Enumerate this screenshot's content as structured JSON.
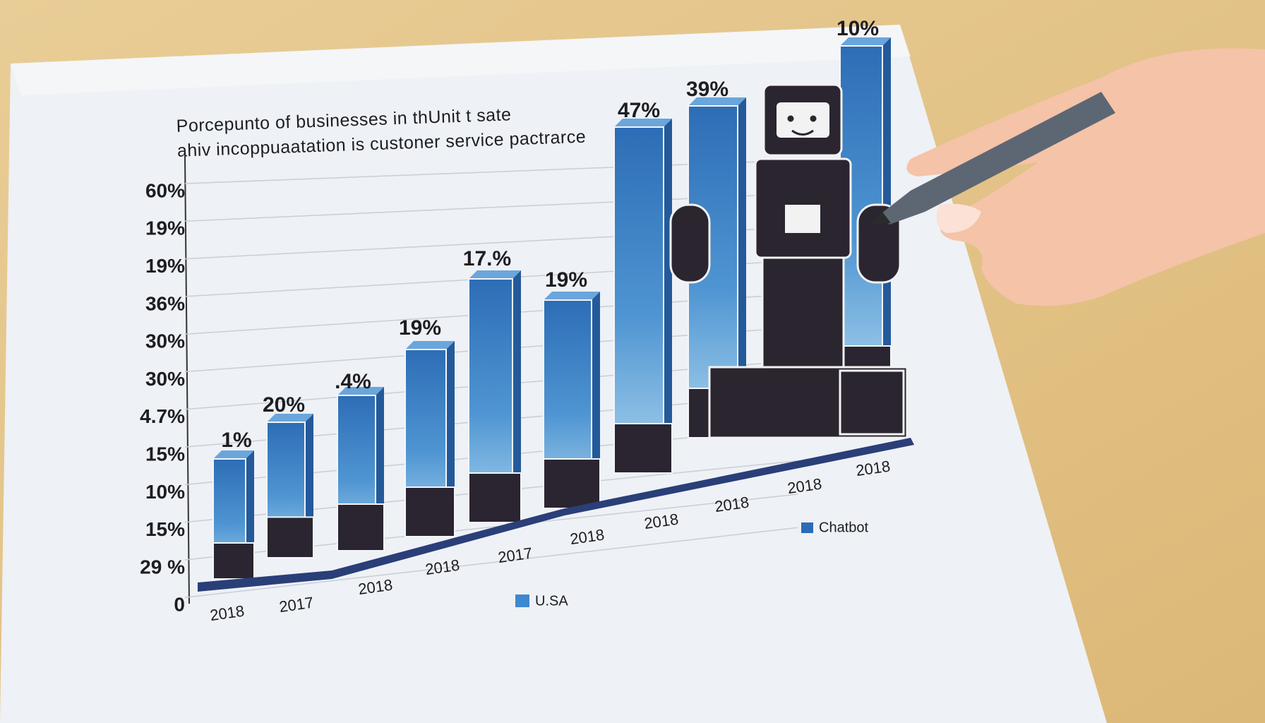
{
  "title": {
    "lines": [
      "Porcepunto of businesses in thUnit t sate",
      "ahiv incoppuaatation is custoner service pactrarce"
    ]
  },
  "y_axis_labels": [
    "60%",
    "19%",
    "19%",
    "36%",
    "30%",
    "30%",
    "4.7%",
    "15%",
    "10%",
    "15%",
    "29 %",
    "0"
  ],
  "bars": [
    {
      "label": "1%"
    },
    {
      "label": "20%"
    },
    {
      "label": ".4%"
    },
    {
      "label": "19%"
    },
    {
      "label": "17.%"
    },
    {
      "label": "19%"
    },
    {
      "label": "47%"
    },
    {
      "label": "39%"
    },
    {
      "label": "10%"
    }
  ],
  "years": [
    "2018",
    "2017",
    "2018",
    "2018",
    "2017",
    "2018",
    "2018",
    "2018",
    "2018",
    "2018"
  ],
  "legend": [
    "U.SA",
    "Chatbot"
  ]
}
